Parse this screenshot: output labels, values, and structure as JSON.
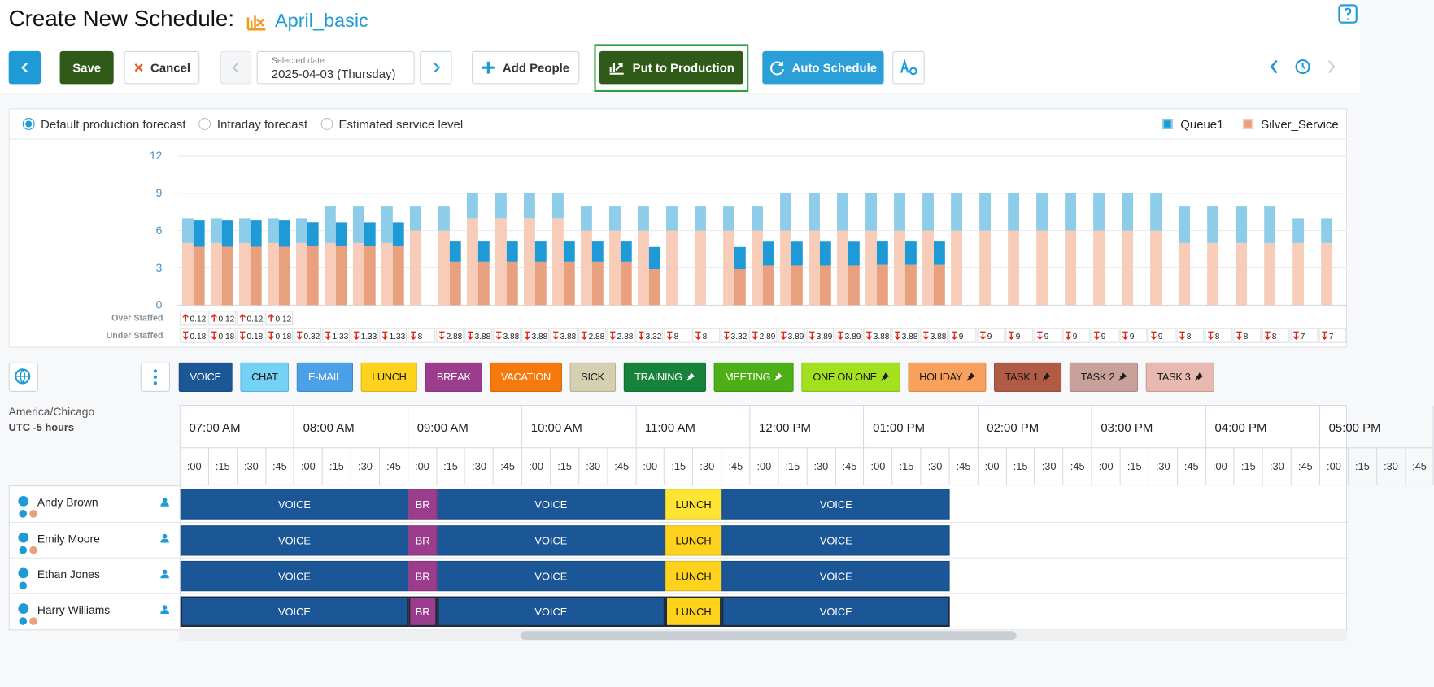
{
  "header": {
    "title": "Create New Schedule:",
    "schedule_name": "April_basic"
  },
  "toolbar": {
    "save": "Save",
    "cancel": "Cancel",
    "date_label": "Selected date",
    "date": "2025-04-03 (Thursday)",
    "add_people": "Add People",
    "put_to_production": "Put to Production",
    "auto_schedule": "Auto Schedule"
  },
  "forecast_options": {
    "options": [
      "Default production forecast",
      "Intraday forecast",
      "Estimated service level"
    ],
    "selected": 0
  },
  "chart_data": {
    "type": "bar",
    "series": [
      {
        "name": "Queue1",
        "color": "#1e9bd7",
        "forecast_color": "#8ecdea",
        "forecast": [
          2,
          2,
          2,
          2,
          2,
          3,
          3,
          3,
          2,
          2,
          2,
          2,
          2,
          2,
          2,
          2,
          2,
          2,
          2,
          2,
          2,
          3,
          3,
          3,
          3,
          3,
          3,
          3,
          3,
          3,
          3,
          3,
          3,
          3,
          3,
          3,
          3,
          3,
          3,
          2,
          2
        ],
        "scheduled": [
          2.12,
          2.12,
          2.12,
          2.12,
          1.94,
          1.93,
          1.93,
          1.93,
          null,
          1.62,
          1.62,
          1.62,
          1.62,
          1.62,
          1.62,
          1.62,
          1.78,
          null,
          null,
          1.78,
          1.91,
          1.91,
          1.91,
          1.91,
          1.87,
          1.87,
          1.87,
          null,
          null,
          null,
          null,
          null,
          null,
          null,
          null,
          null,
          null,
          null,
          null,
          null,
          null
        ]
      },
      {
        "name": "Silver_Service",
        "color": "#e9a07f",
        "forecast_color": "#f7ccb8",
        "forecast": [
          5,
          5,
          5,
          5,
          5,
          5,
          5,
          5,
          6,
          6,
          7,
          7,
          7,
          7,
          6,
          6,
          6,
          6,
          6,
          6,
          6,
          6,
          6,
          6,
          6,
          6,
          6,
          6,
          6,
          6,
          6,
          6,
          6,
          6,
          6,
          5,
          5,
          5,
          5,
          5,
          5
        ],
        "scheduled": [
          4.7,
          4.7,
          4.7,
          4.7,
          4.74,
          4.74,
          4.74,
          4.74,
          null,
          3.5,
          3.5,
          3.5,
          3.5,
          3.5,
          3.5,
          3.5,
          2.9,
          null,
          null,
          2.9,
          3.2,
          3.2,
          3.2,
          3.2,
          3.25,
          3.25,
          3.25,
          null,
          null,
          null,
          null,
          null,
          null,
          null,
          null,
          null,
          null,
          null,
          null,
          null,
          null
        ]
      }
    ],
    "ylim": [
      0,
      12
    ],
    "yticks": [
      0,
      3,
      6,
      9,
      12
    ],
    "grid": true,
    "over_staffed": {
      "label": "Over Staffed",
      "values": [
        0.12,
        0.12,
        0.12,
        0.12,
        null,
        null,
        null,
        null,
        null,
        null,
        null,
        null,
        null,
        null,
        null,
        null,
        null,
        null,
        null,
        null,
        null,
        null,
        null,
        null,
        null,
        null,
        null,
        null,
        null,
        null,
        null,
        null,
        null,
        null,
        null,
        null,
        null,
        null,
        null,
        null,
        null
      ]
    },
    "under_staffed": {
      "label": "Under Staffed",
      "values": [
        0.18,
        0.18,
        0.18,
        0.18,
        0.32,
        1.33,
        1.33,
        1.33,
        8,
        2.88,
        3.88,
        3.88,
        3.88,
        3.88,
        2.88,
        2.88,
        3.32,
        8,
        8,
        3.32,
        2.89,
        3.89,
        3.89,
        3.89,
        3.88,
        3.88,
        3.88,
        9,
        9,
        9,
        9,
        9,
        9,
        9,
        9,
        8,
        8,
        8,
        8,
        7,
        7
      ]
    }
  },
  "activities": [
    {
      "label": "VOICE",
      "color": "#1b5797",
      "text_color": "#ffffff"
    },
    {
      "label": "CHAT",
      "color": "#74d2f6",
      "text_color": "#1a1a1a"
    },
    {
      "label": "E-MAIL",
      "color": "#4ba0e8",
      "text_color": "#ffffff"
    },
    {
      "label": "LUNCH",
      "color": "#ffd21e",
      "text_color": "#1a1a1a"
    },
    {
      "label": "BREAK",
      "color": "#9c3c8d",
      "text_color": "#ffffff"
    },
    {
      "label": "VACATION",
      "color": "#f5790d",
      "text_color": "#ffffff"
    },
    {
      "label": "SICK",
      "color": "#d6d0b2",
      "text_color": "#1a1a1a"
    },
    {
      "label": "TRAINING",
      "color": "#16823a",
      "text_color": "#ffffff",
      "pinned": true
    },
    {
      "label": "MEETING",
      "color": "#4dae16",
      "text_color": "#ffffff",
      "pinned": true
    },
    {
      "label": "ONE ON ONE",
      "color": "#a3e01e",
      "text_color": "#1a1a1a",
      "pinned": true
    },
    {
      "label": "HOLIDAY",
      "color": "#f9a15c",
      "text_color": "#1a1a1a",
      "pinned": true
    },
    {
      "label": "TASK 1",
      "color": "#b15b45",
      "text_color": "#1a1a1a",
      "pinned": true
    },
    {
      "label": "TASK 2",
      "color": "#c9a19b",
      "text_color": "#1a1a1a",
      "pinned": true
    },
    {
      "label": "TASK 3",
      "color": "#e8b9b0",
      "text_color": "#1a1a1a",
      "pinned": true
    }
  ],
  "timeline": {
    "timezone": "America/Chicago",
    "utc_offset": "UTC -5 hours",
    "range": [
      7,
      17.24
    ],
    "hours": [
      "07:00 AM",
      "08:00 AM",
      "09:00 AM",
      "10:00 AM",
      "11:00 AM",
      "12:00 PM",
      "01:00 PM",
      "02:00 PM",
      "03:00 PM",
      "04:00 PM",
      "05:00 PM"
    ],
    "minutes": [
      ":00",
      ":15",
      ":30",
      ":45"
    ]
  },
  "agents": [
    {
      "name": "Andy Brown",
      "skill_colors": [
        "#1e9bd7",
        "#e9a07f"
      ],
      "blocks": [
        {
          "label": "VOICE",
          "color": "#1b5797",
          "start": 7,
          "end": 9
        },
        {
          "label": "BR",
          "color": "#9c3c8d",
          "start": 9,
          "end": 9.25
        },
        {
          "label": "VOICE",
          "color": "#1b5797",
          "start": 9.25,
          "end": 11.25
        },
        {
          "label": "LUNCH",
          "color": "#ffe433",
          "start": 11.25,
          "end": 11.75
        },
        {
          "label": "VOICE",
          "color": "#1b5797",
          "start": 11.75,
          "end": 13.75
        }
      ]
    },
    {
      "name": "Emily Moore",
      "skill_colors": [
        "#1e9bd7",
        "#e9a07f"
      ],
      "blocks": [
        {
          "label": "VOICE",
          "color": "#1b5797",
          "start": 7,
          "end": 9
        },
        {
          "label": "BR",
          "color": "#9c3c8d",
          "start": 9,
          "end": 9.25
        },
        {
          "label": "VOICE",
          "color": "#1b5797",
          "start": 9.25,
          "end": 11.25
        },
        {
          "label": "LUNCH",
          "color": "#ffd21e",
          "start": 11.25,
          "end": 11.75
        },
        {
          "label": "VOICE",
          "color": "#1b5797",
          "start": 11.75,
          "end": 13.75
        }
      ]
    },
    {
      "name": "Ethan Jones",
      "skill_colors": [
        "#1e9bd7"
      ],
      "blocks": [
        {
          "label": "VOICE",
          "color": "#1b5797",
          "start": 7,
          "end": 9
        },
        {
          "label": "BR",
          "color": "#9c3c8d",
          "start": 9,
          "end": 9.25
        },
        {
          "label": "VOICE",
          "color": "#1b5797",
          "start": 9.25,
          "end": 11.25
        },
        {
          "label": "LUNCH",
          "color": "#ffd21e",
          "start": 11.25,
          "end": 11.75
        },
        {
          "label": "VOICE",
          "color": "#1b5797",
          "start": 11.75,
          "end": 13.75
        }
      ]
    },
    {
      "name": "Harry Williams",
      "skill_colors": [
        "#1e9bd7",
        "#e9a07f"
      ],
      "selected": true,
      "blocks": [
        {
          "label": "VOICE",
          "color": "#1b5797",
          "start": 7,
          "end": 9
        },
        {
          "label": "BR",
          "color": "#9c3c8d",
          "start": 9,
          "end": 9.25
        },
        {
          "label": "VOICE",
          "color": "#1b5797",
          "start": 9.25,
          "end": 11.25
        },
        {
          "label": "LUNCH",
          "color": "#ffd21e",
          "start": 11.25,
          "end": 11.75
        },
        {
          "label": "VOICE",
          "color": "#1b5797",
          "start": 11.75,
          "end": 13.75
        }
      ]
    }
  ]
}
